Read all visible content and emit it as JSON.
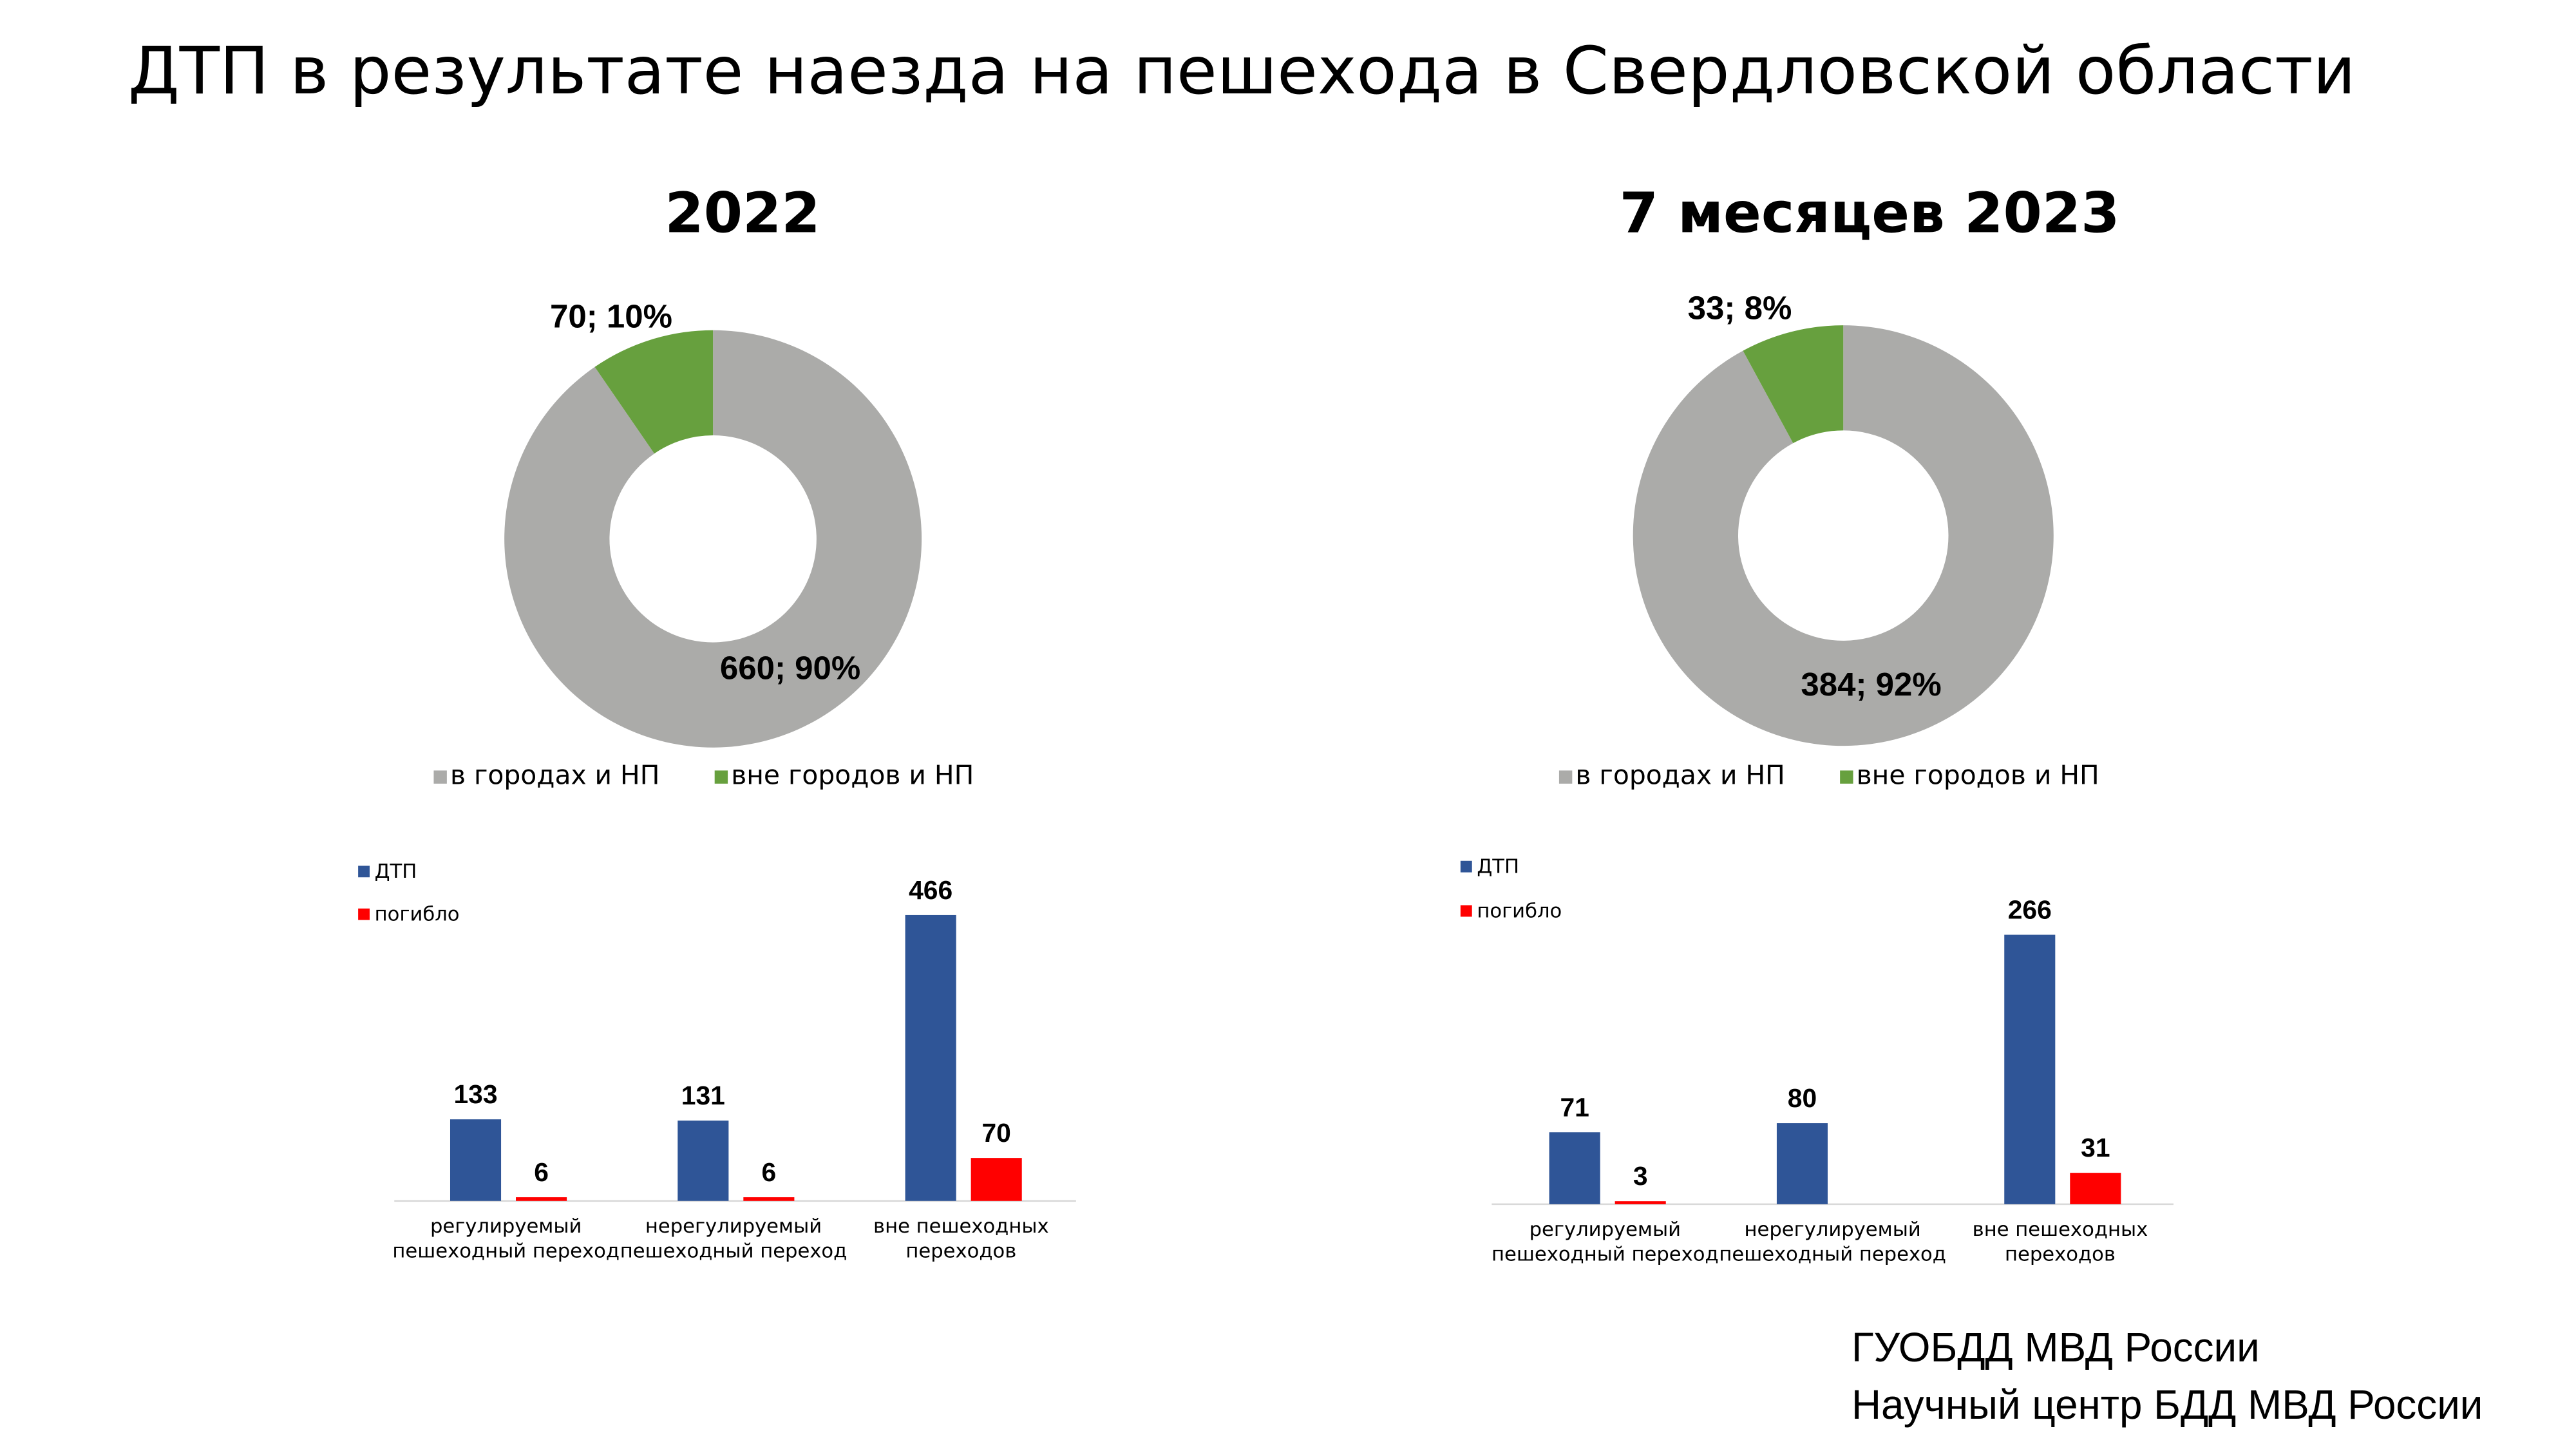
{
  "title": "ДТП в результате наезда на пешехода в Свердловской области",
  "source": [
    "ГУОБДД МВД России",
    "Научный центр БДД МВД России"
  ],
  "chart_data": [
    {
      "type": "pie",
      "title": "2022",
      "categories": [
        "в городах и НП",
        "вне городов и НП"
      ],
      "values": [
        660,
        70
      ],
      "value_labels": [
        "660; 90%",
        "70; 10%"
      ],
      "colors": [
        "#ababa9",
        "#67a03e"
      ],
      "label_colors": [
        "#ffffff",
        "#67a03e"
      ]
    },
    {
      "type": "bar",
      "categories": [
        [
          "регулируемый",
          "пешеходный переход"
        ],
        [
          "нерегулируемый",
          "пешеходный переход"
        ],
        [
          "вне пешеходных",
          "переходов"
        ]
      ],
      "series": [
        {
          "name": "ДТП",
          "color": "#2f5597",
          "label_color": "#1aa3e0",
          "values": [
            133,
            131,
            466
          ]
        },
        {
          "name": "погибло",
          "color": "#ff0000",
          "label_color": "#e8151b",
          "values": [
            6,
            6,
            70
          ]
        }
      ]
    },
    {
      "type": "pie",
      "title": "7 месяцев 2023",
      "categories": [
        "в городах и НП",
        "вне городов и НП"
      ],
      "values": [
        384,
        33
      ],
      "value_labels": [
        "384; 92%",
        "33; 8%"
      ],
      "colors": [
        "#ababa9",
        "#67a03e"
      ],
      "label_colors": [
        "#ffffff",
        "#67a03e"
      ]
    },
    {
      "type": "bar",
      "categories": [
        [
          "регулируемый",
          "пешеходный переход"
        ],
        [
          "нерегулируемый",
          "пешеходный переход"
        ],
        [
          "вне пешеходных",
          "переходов"
        ]
      ],
      "series": [
        {
          "name": "ДТП",
          "color": "#2f5597",
          "label_color": "#1aa3e0",
          "values": [
            71,
            80,
            266
          ]
        },
        {
          "name": "погибло",
          "color": "#ff0000",
          "label_color": "#e8151b",
          "values": [
            3,
            null,
            31
          ]
        }
      ]
    }
  ]
}
